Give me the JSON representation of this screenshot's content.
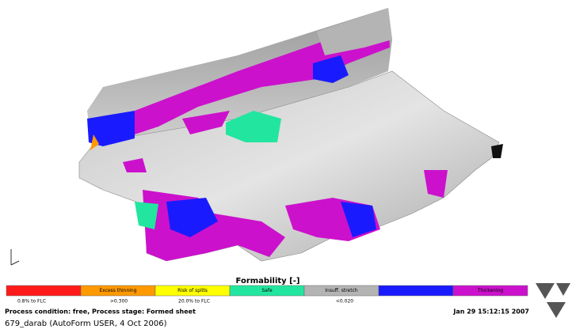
{
  "header": {
    "title": "Formability [-]"
  },
  "legend": [
    {
      "color": "#ff1a1a"
    },
    {
      "color": "#ff9900",
      "label": "Excess thinning"
    },
    {
      "color": "#ffff00",
      "label": "Risk of splits"
    },
    {
      "color": "#22e6a0",
      "label": "Safe"
    },
    {
      "color": "#b4b4b4",
      "label": "Insuff. stretch"
    },
    {
      "color": "#1a1aff"
    },
    {
      "color": "#cc11cc",
      "label": "Thickening"
    }
  ],
  "scale_labels": [
    "0.8% to FLC",
    ">0.300",
    "20.0% to FLC",
    "<0.020"
  ],
  "footer": {
    "process": "Process condition: free, Process stage: Formed sheet",
    "date": "Jan 29 15:12:15 2007",
    "file": "679_darab (AutoForm USER, 4 Oct 2006)"
  }
}
